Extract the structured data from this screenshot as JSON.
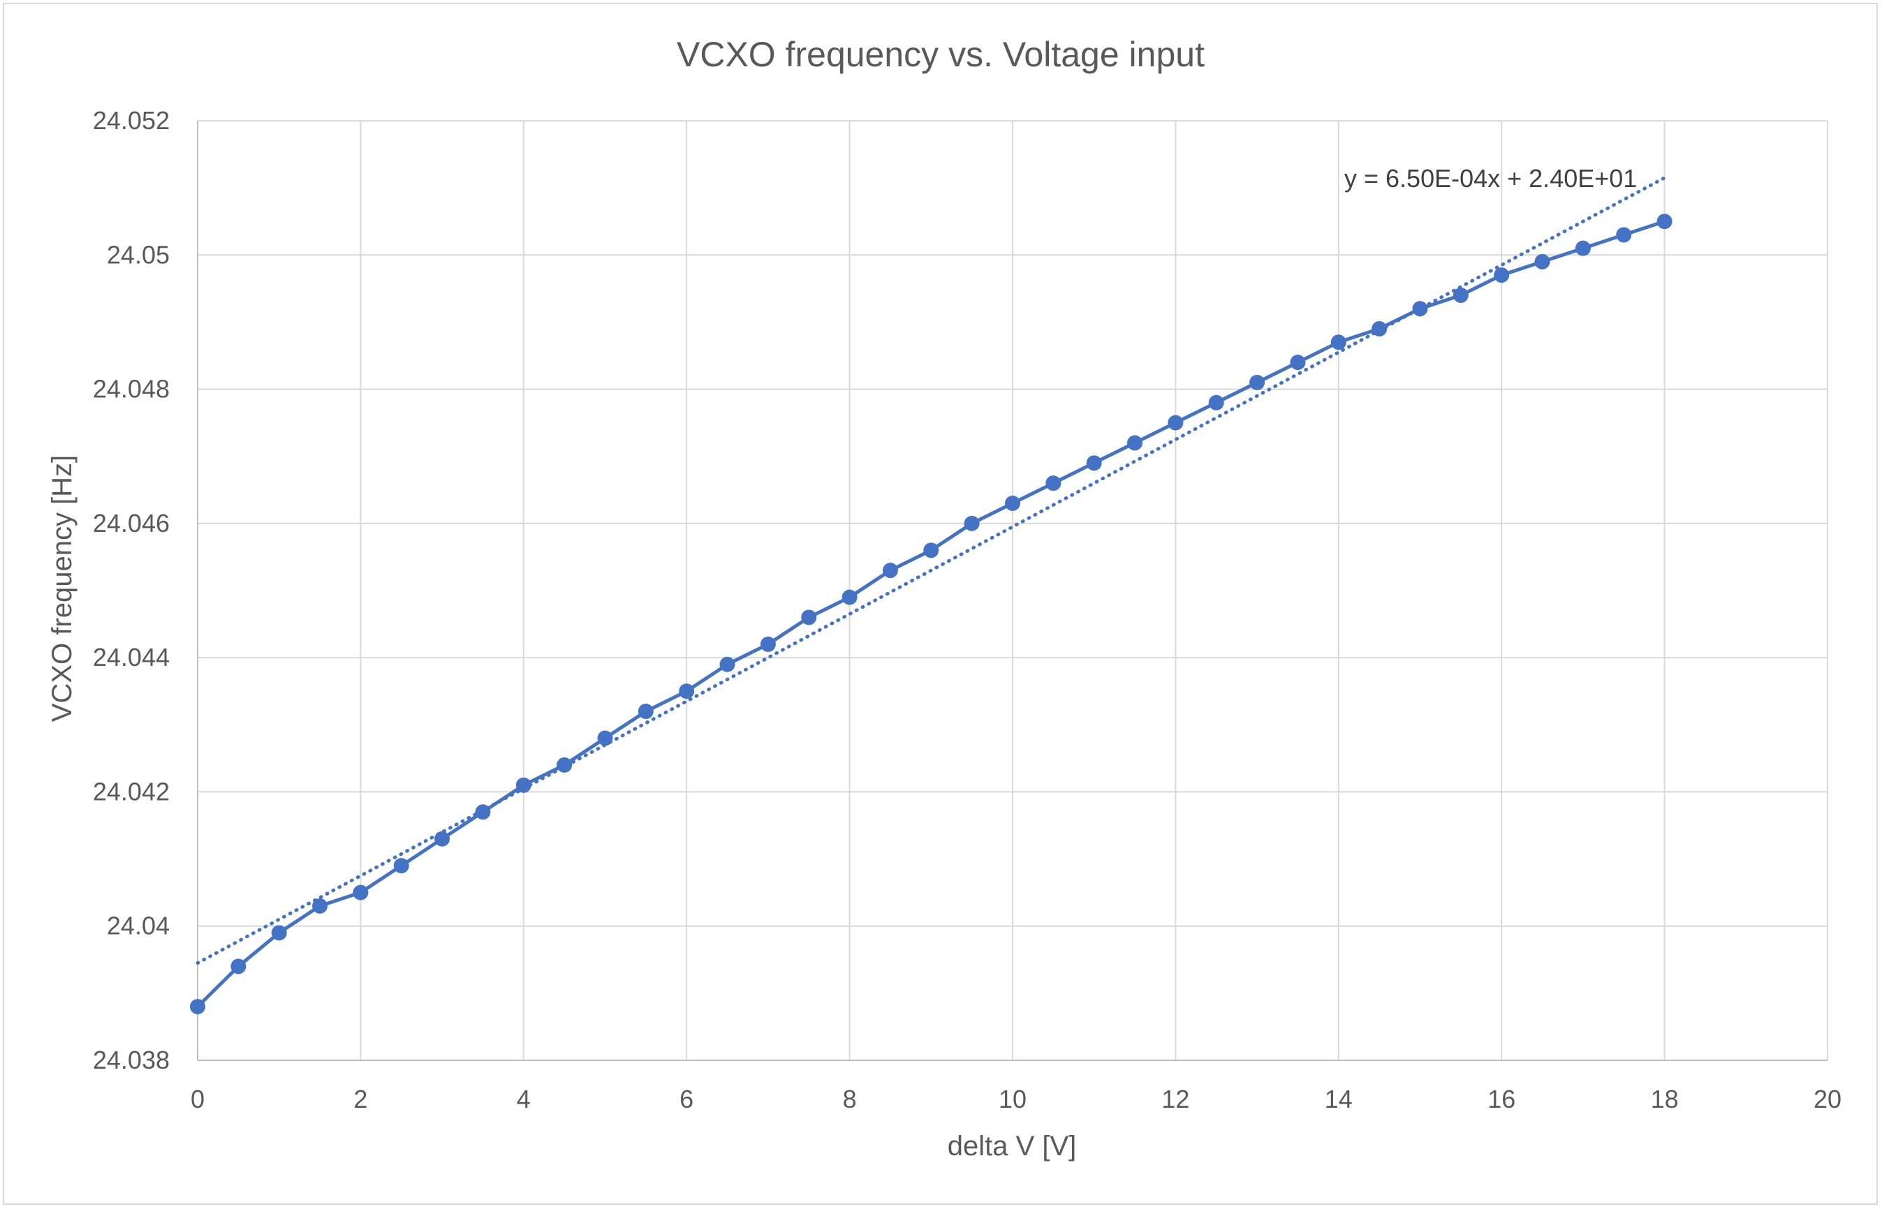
{
  "chart_data": {
    "type": "scatter",
    "title": "VCXO frequency vs. Voltage input",
    "xlabel": "delta V [V]",
    "ylabel": "VCXO frequency [Hz]",
    "xlim": [
      0,
      20
    ],
    "ylim": [
      24.038,
      24.052
    ],
    "xticks": [
      0,
      2,
      4,
      6,
      8,
      10,
      12,
      14,
      16,
      18,
      20
    ],
    "xtick_labels": [
      "0",
      "2",
      "4",
      "6",
      "8",
      "10",
      "12",
      "14",
      "16",
      "18",
      "20"
    ],
    "yticks": [
      24.038,
      24.04,
      24.042,
      24.044,
      24.046,
      24.048,
      24.05,
      24.052
    ],
    "ytick_labels": [
      "24.038",
      "24.04",
      "24.042",
      "24.044",
      "24.046",
      "24.048",
      "24.05",
      "24.052"
    ],
    "grid": true,
    "marker": "circle",
    "line": "solid",
    "series_color": "#4472C4",
    "x": [
      0,
      0.5,
      1,
      1.5,
      2,
      2.5,
      3,
      3.5,
      4,
      4.5,
      5,
      5.5,
      6,
      6.5,
      7,
      7.5,
      8,
      8.5,
      9,
      9.5,
      10,
      10.5,
      11,
      11.5,
      12,
      12.5,
      13,
      13.5,
      14,
      14.5,
      15,
      15.5,
      16,
      16.5,
      17,
      17.5,
      18
    ],
    "y": [
      24.0388,
      24.0394,
      24.0399,
      24.0403,
      24.0405,
      24.0409,
      24.0413,
      24.0417,
      24.0421,
      24.0424,
      24.0428,
      24.0432,
      24.0435,
      24.0439,
      24.0442,
      24.0446,
      24.0449,
      24.0453,
      24.0456,
      24.046,
      24.0463,
      24.0466,
      24.0469,
      24.0472,
      24.0475,
      24.0478,
      24.0481,
      24.0484,
      24.0487,
      24.0489,
      24.0492,
      24.0494,
      24.0497,
      24.0499,
      24.0501,
      24.0503,
      24.0505
    ],
    "trendline": {
      "type": "linear",
      "style": "dotted",
      "x_range": [
        0,
        18
      ],
      "y_range": [
        24.03945,
        24.05115
      ],
      "equation": "y = 6.50E-04x + 2.40E+01"
    }
  }
}
